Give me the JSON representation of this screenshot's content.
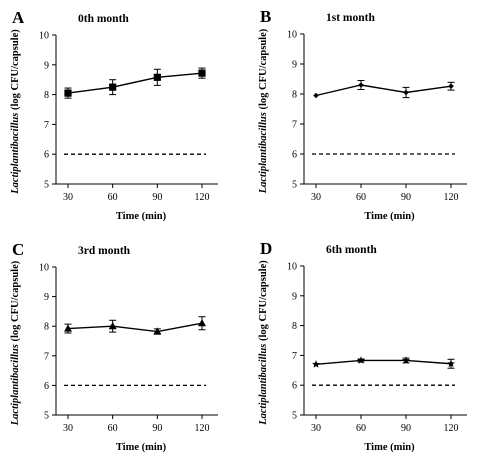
{
  "figure": {
    "panels": [
      {
        "letter": "A",
        "title": "0th month"
      },
      {
        "letter": "B",
        "title": "1st month"
      },
      {
        "letter": "C",
        "title": "3rd month"
      },
      {
        "letter": "D",
        "title": "6th month"
      }
    ],
    "xlabel": "Time (min)",
    "ylabel_italic": "Lactiplantibacillus",
    "ylabel_rest": " (log CFU/capsule)"
  },
  "chart_data": [
    {
      "type": "line",
      "title": "0th month",
      "xlabel": "Time (min)",
      "ylabel": "Lactiplantibacillus (log CFU/capsule)",
      "x": [
        30,
        60,
        90,
        120
      ],
      "xticks": [
        "30",
        "60",
        "90",
        "120"
      ],
      "yticks": [
        "5",
        "6",
        "7",
        "8",
        "9",
        "10"
      ],
      "ylim": [
        5,
        10
      ],
      "marker": "square",
      "values": [
        8.05,
        8.25,
        8.58,
        8.72
      ],
      "errors": [
        0.17,
        0.25,
        0.27,
        0.17
      ],
      "reference_line": 6,
      "grid": false
    },
    {
      "type": "line",
      "title": "1st month",
      "xlabel": "Time (min)",
      "ylabel": "Lactiplantibacillus (log CFU/capsule)",
      "x": [
        30,
        60,
        90,
        120
      ],
      "xticks": [
        "30",
        "60",
        "90",
        "120"
      ],
      "yticks": [
        "5",
        "6",
        "7",
        "8",
        "9",
        "10"
      ],
      "ylim": [
        5,
        10
      ],
      "marker": "diamond",
      "values": [
        7.95,
        8.3,
        8.05,
        8.26
      ],
      "errors": [
        0.0,
        0.15,
        0.17,
        0.13
      ],
      "reference_line": 6,
      "grid": false
    },
    {
      "type": "line",
      "title": "3rd month",
      "xlabel": "Time (min)",
      "ylabel": "Lactiplantibacillus (log CFU/capsule)",
      "x": [
        30,
        60,
        90,
        120
      ],
      "xticks": [
        "30",
        "60",
        "90",
        "120"
      ],
      "yticks": [
        "5",
        "6",
        "7",
        "8",
        "9",
        "10"
      ],
      "ylim": [
        5,
        10
      ],
      "marker": "triangle",
      "values": [
        7.92,
        8.0,
        7.82,
        8.1
      ],
      "errors": [
        0.15,
        0.2,
        0.09,
        0.22
      ],
      "reference_line": 6,
      "grid": false
    },
    {
      "type": "line",
      "title": "6th month",
      "xlabel": "Time (min)",
      "ylabel": "Lactiplantibacillus (log CFU/capsule)",
      "x": [
        30,
        60,
        90,
        120
      ],
      "xticks": [
        "30",
        "60",
        "90",
        "120"
      ],
      "yticks": [
        "5",
        "6",
        "7",
        "8",
        "9",
        "10"
      ],
      "ylim": [
        5,
        10
      ],
      "marker": "star",
      "values": [
        6.7,
        6.83,
        6.83,
        6.72
      ],
      "errors": [
        0.0,
        0.05,
        0.08,
        0.15
      ],
      "reference_line": 6,
      "grid": false
    }
  ]
}
